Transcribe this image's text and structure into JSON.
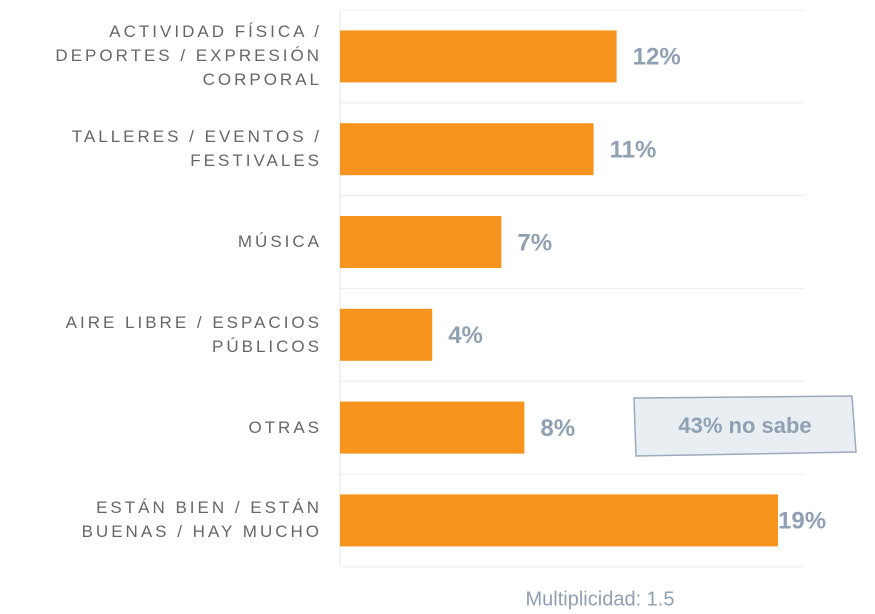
{
  "chart_data": {
    "type": "bar",
    "orientation": "horizontal",
    "categories": [
      "ACTIVIDAD FÍSICA / DEPORTES / EXPRESIÓN CORPORAL",
      "TALLERES / EVENTOS / FESTIVALES",
      "MÚSICA",
      "AIRE LIBRE / ESPACIOS PÚBLICOS",
      "OTRAS",
      "ESTÁN BIEN / ESTÁN BUENAS / HAY MUCHO"
    ],
    "values": [
      12,
      11,
      7,
      4,
      8,
      19
    ],
    "value_labels": [
      "12%",
      "11%",
      "7%",
      "4%",
      "8%",
      "19%"
    ],
    "color": "#f7941d",
    "annotations": [
      "43% no sabe"
    ],
    "note": "Multiplicidad: 1.5"
  }
}
